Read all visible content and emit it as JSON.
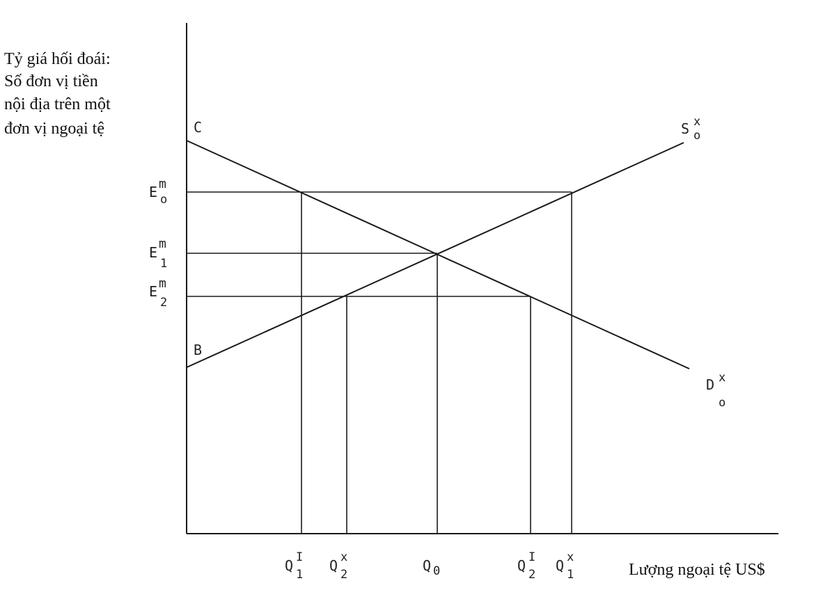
{
  "y_axis_label": [
    "Tỷ giá hối đoái:",
    "Số đơn vị tiền",
    "nội địa trên một",
    "đơn vị ngoại tệ"
  ],
  "x_axis_label": "Lượng ngoại tệ US$",
  "curves": {
    "supply": {
      "base": "S",
      "sup": "x",
      "sub": "o"
    },
    "demand": {
      "base": "D",
      "sup": "x",
      "sub": "o"
    }
  },
  "intercepts": {
    "demand": "C",
    "supply": "B"
  },
  "price_levels": [
    {
      "base": "E",
      "sup": "m",
      "sub": "o"
    },
    {
      "base": "E",
      "sup": "m",
      "sub": "1"
    },
    {
      "base": "E",
      "sup": "m",
      "sub": "2"
    }
  ],
  "quantities": [
    {
      "base": "Q",
      "sup": "I",
      "sub": "1"
    },
    {
      "base": "Q",
      "sup": "x",
      "sub": "2"
    },
    {
      "base": "Q",
      "sup": "",
      "sub": "0"
    },
    {
      "base": "Q",
      "sup": "I",
      "sub": "2"
    },
    {
      "base": "Q",
      "sup": "x",
      "sub": "1"
    }
  ]
}
